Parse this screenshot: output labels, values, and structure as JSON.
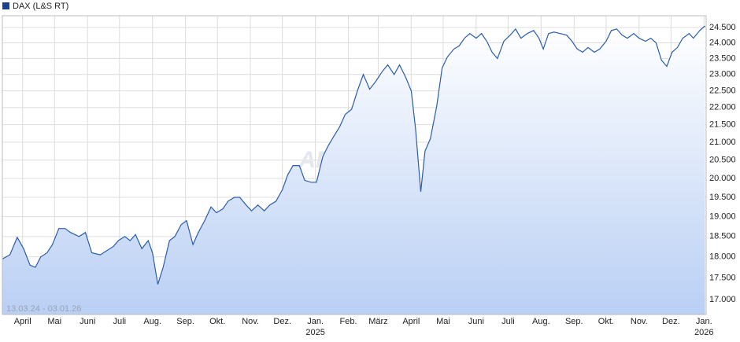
{
  "chart_data": {
    "type": "line",
    "legend": "DAX (L&S RT)",
    "date_range": "13.03.24 - 03.01.26",
    "watermark": "ARIVA.DE",
    "log_scale": true,
    "grid": true,
    "series": [
      {
        "name": "DAX (L&S RT)",
        "color": "#2a5caa",
        "x": [
          0,
          7,
          14,
          20,
          26,
          31,
          36,
          42,
          47,
          53,
          59,
          64,
          72,
          78,
          84,
          92,
          98,
          104,
          109,
          115,
          120,
          125,
          131,
          137,
          141,
          146,
          151,
          157,
          162,
          168,
          173,
          179,
          184,
          190,
          196,
          201,
          207,
          212,
          218,
          223,
          229,
          234,
          240,
          246,
          251,
          257,
          263,
          268,
          273,
          279,
          284,
          290,
          295,
          301,
          306,
          311,
          317,
          322,
          328,
          334,
          339,
          345,
          351,
          357,
          362,
          368,
          373,
          379,
          384,
          388,
          393,
          397,
          402,
          408,
          413,
          418,
          424,
          429,
          434,
          439,
          445,
          450,
          455,
          460,
          465,
          471,
          477,
          482,
          487,
          493,
          499,
          504,
          508,
          513,
          518,
          524,
          530,
          535,
          540,
          545,
          550,
          556,
          561,
          567,
          572,
          577,
          582,
          587,
          593,
          598,
          604,
          609,
          614,
          619,
          624,
          629,
          634,
          639,
          645,
          649,
          655,
          660
        ],
        "values": [
          17950,
          18050,
          18480,
          18200,
          17800,
          17750,
          18000,
          18100,
          18300,
          18700,
          18700,
          18600,
          18500,
          18600,
          18100,
          18050,
          18150,
          18250,
          18400,
          18500,
          18400,
          18550,
          18200,
          18400,
          18100,
          17350,
          17750,
          18400,
          18500,
          18800,
          18900,
          18300,
          18600,
          18900,
          19250,
          19100,
          19200,
          19400,
          19500,
          19500,
          19300,
          19150,
          19300,
          19150,
          19300,
          19400,
          19700,
          20100,
          20350,
          20350,
          19950,
          19900,
          19900,
          20600,
          20900,
          21150,
          21450,
          21800,
          21950,
          22550,
          23000,
          22550,
          22800,
          23100,
          23300,
          23000,
          23300,
          22900,
          22500,
          21400,
          19650,
          20750,
          21100,
          22050,
          23200,
          23550,
          23800,
          23900,
          24150,
          24300,
          24150,
          24300,
          24050,
          23700,
          23500,
          24050,
          24250,
          24450,
          24150,
          24300,
          24400,
          24150,
          23800,
          24300,
          24350,
          24300,
          24250,
          24050,
          23800,
          23700,
          23850,
          23700,
          23800,
          24050,
          24400,
          24450,
          24250,
          24150,
          24300,
          24150,
          24050,
          24150,
          24000,
          23450,
          23250,
          23700,
          23850,
          24150,
          24300,
          24150,
          24400,
          24550
        ]
      }
    ],
    "xlim": [
      0,
      661
    ],
    "xticks": [
      {
        "value": 19,
        "label": "April"
      },
      {
        "value": 49,
        "label": "Mai"
      },
      {
        "value": 80,
        "label": "Juni"
      },
      {
        "value": 110,
        "label": "Juli"
      },
      {
        "value": 141,
        "label": "Aug."
      },
      {
        "value": 172,
        "label": "Sep."
      },
      {
        "value": 202,
        "label": "Okt."
      },
      {
        "value": 233,
        "label": "Nov."
      },
      {
        "value": 263,
        "label": "Dez."
      },
      {
        "value": 294,
        "label": "Jan."
      },
      {
        "value": 325,
        "label": "Feb."
      },
      {
        "value": 353,
        "label": "März"
      },
      {
        "value": 384,
        "label": "April"
      },
      {
        "value": 414,
        "label": "Mai"
      },
      {
        "value": 445,
        "label": "Juni"
      },
      {
        "value": 475,
        "label": "Juli"
      },
      {
        "value": 506,
        "label": "Aug."
      },
      {
        "value": 537,
        "label": "Sep."
      },
      {
        "value": 567,
        "label": "Okt."
      },
      {
        "value": 598,
        "label": "Nov."
      },
      {
        "value": 628,
        "label": "Dez."
      },
      {
        "value": 659,
        "label": "Jan."
      }
    ],
    "xyears": [
      {
        "value": 294,
        "label": "2025"
      },
      {
        "value": 659,
        "label": "2026"
      }
    ],
    "ylim": [
      16660,
      24890
    ],
    "yticks": [
      {
        "value": 17000,
        "label": "17.000"
      },
      {
        "value": 17500,
        "label": "17.500"
      },
      {
        "value": 18000,
        "label": "18.000"
      },
      {
        "value": 18500,
        "label": "18.500"
      },
      {
        "value": 19000,
        "label": "19.000"
      },
      {
        "value": 19500,
        "label": "19.500"
      },
      {
        "value": 20000,
        "label": "20.000"
      },
      {
        "value": 20500,
        "label": "20.500"
      },
      {
        "value": 21000,
        "label": "21.000"
      },
      {
        "value": 21500,
        "label": "21.500"
      },
      {
        "value": 22000,
        "label": "22.000"
      },
      {
        "value": 22500,
        "label": "22.500"
      },
      {
        "value": 23000,
        "label": "23.000"
      },
      {
        "value": 23500,
        "label": "23.500"
      },
      {
        "value": 24000,
        "label": "24.000"
      },
      {
        "value": 24500,
        "label": "24.500"
      }
    ]
  }
}
